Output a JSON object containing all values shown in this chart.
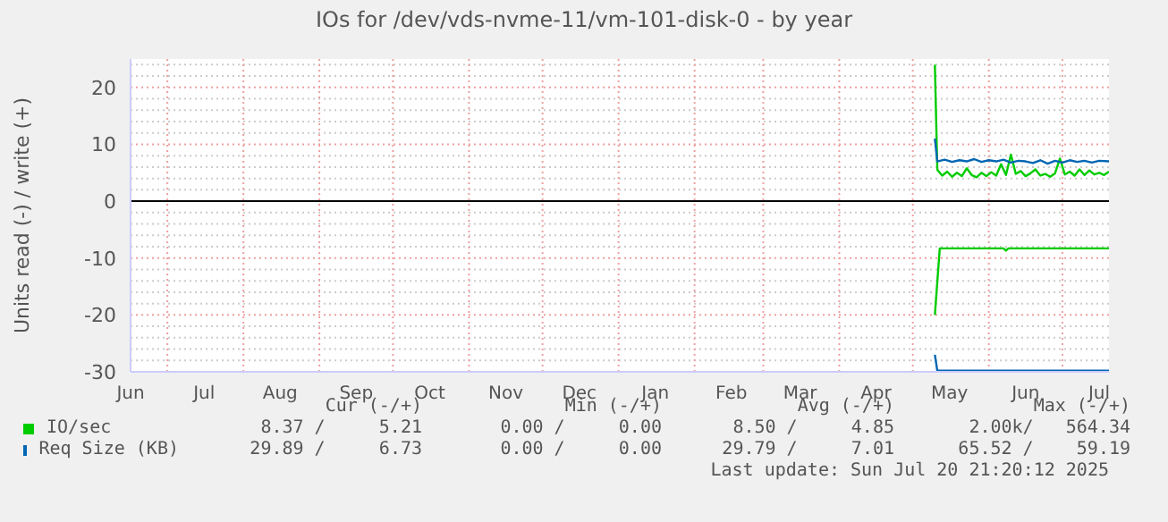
{
  "chart_data": {
    "type": "line",
    "title": "IOs for /dev/vds-nvme-11/vm-101-disk-0 - by year",
    "ylabel": "Units read (-) / write (+)",
    "xlim": [
      "2024-06-16",
      "2025-07-20"
    ],
    "xticks": [
      {
        "value": "2024-06-16",
        "label": "Jun"
      },
      {
        "value": "2024-07-01",
        "label": null
      },
      {
        "value": "2024-07-16",
        "label": "Jul"
      },
      {
        "value": "2024-08-01",
        "label": null
      },
      {
        "value": "2024-08-16",
        "label": "Aug"
      },
      {
        "value": "2024-09-01",
        "label": null
      },
      {
        "value": "2024-09-16",
        "label": "Sep"
      },
      {
        "value": "2024-10-01",
        "label": null
      },
      {
        "value": "2024-10-16",
        "label": "Oct"
      },
      {
        "value": "2024-11-01",
        "label": null
      },
      {
        "value": "2024-11-16",
        "label": "Nov"
      },
      {
        "value": "2024-12-01",
        "label": null
      },
      {
        "value": "2024-12-16",
        "label": "Dec"
      },
      {
        "value": "2025-01-01",
        "label": null
      },
      {
        "value": "2025-01-16",
        "label": "Jan"
      },
      {
        "value": "2025-02-01",
        "label": null
      },
      {
        "value": "2025-02-16",
        "label": "Feb"
      },
      {
        "value": "2025-03-01",
        "label": null
      },
      {
        "value": "2025-03-16",
        "label": "Mar"
      },
      {
        "value": "2025-04-01",
        "label": null
      },
      {
        "value": "2025-04-16",
        "label": "Apr"
      },
      {
        "value": "2025-05-01",
        "label": null
      },
      {
        "value": "2025-05-16",
        "label": "May"
      },
      {
        "value": "2025-06-01",
        "label": null
      },
      {
        "value": "2025-06-16",
        "label": "Jun"
      },
      {
        "value": "2025-07-01",
        "label": null
      },
      {
        "value": "2025-07-16",
        "label": "Jul"
      }
    ],
    "ylim": [
      -30,
      25
    ],
    "yticks": [
      -30,
      {
        "value": -28,
        "label": null
      },
      {
        "value": -26,
        "label": null
      },
      {
        "value": -24,
        "label": null
      },
      {
        "value": -22,
        "label": null
      },
      -20,
      {
        "value": -18,
        "label": null
      },
      {
        "value": -16,
        "label": null
      },
      {
        "value": -14,
        "label": null
      },
      {
        "value": -12,
        "label": null
      },
      -10,
      {
        "value": -8,
        "label": null
      },
      {
        "value": -6,
        "label": null
      },
      {
        "value": -4,
        "label": null
      },
      {
        "value": -2,
        "label": null
      },
      0,
      {
        "value": 2,
        "label": null
      },
      {
        "value": 4,
        "label": null
      },
      {
        "value": 6,
        "label": null
      },
      {
        "value": 8,
        "label": null
      },
      10,
      {
        "value": 12,
        "label": null
      },
      {
        "value": 14,
        "label": null
      },
      {
        "value": 16,
        "label": null
      },
      {
        "value": 18,
        "label": null
      },
      20,
      {
        "value": 22,
        "label": null
      },
      {
        "value": 24,
        "label": null
      }
    ],
    "grid": true,
    "marker": "none",
    "line_style": "solid",
    "legend": "bottom",
    "ref_lines": [
      {
        "axis": "y",
        "value": 0,
        "color": "#000000"
      }
    ],
    "series": [
      {
        "name": "IO/sec",
        "color": "#00cc00",
        "x": [
          "2025-05-10",
          "2025-05-11",
          "2025-05-13",
          "2025-05-15",
          "2025-05-17",
          "2025-05-19",
          "2025-05-21",
          "2025-05-23",
          "2025-05-25",
          "2025-05-27",
          "2025-05-29",
          "2025-05-31",
          "2025-06-02",
          "2025-06-04",
          "2025-06-06",
          "2025-06-08",
          "2025-06-10",
          "2025-06-12",
          "2025-06-14",
          "2025-06-16",
          "2025-06-18",
          "2025-06-20",
          "2025-06-22",
          "2025-06-24",
          "2025-06-26",
          "2025-06-28",
          "2025-06-30",
          "2025-07-02",
          "2025-07-04",
          "2025-07-06",
          "2025-07-08",
          "2025-07-10",
          "2025-07-12",
          "2025-07-14",
          "2025-07-16",
          "2025-07-18",
          "2025-07-20"
        ],
        "values": [
          24,
          5.5,
          4.5,
          5.2,
          4.3,
          5,
          4.4,
          5.8,
          4.6,
          4.2,
          5,
          4.4,
          5.1,
          4.5,
          6.5,
          4.6,
          8.2,
          4.8,
          5.3,
          4.4,
          4.9,
          5.6,
          4.5,
          4.8,
          4.3,
          4.9,
          7.5,
          4.7,
          5.2,
          4.5,
          5.6,
          4.6,
          5.4,
          4.7,
          5,
          4.6,
          5.2
        ]
      },
      {
        "name": "Req Size (KB)",
        "color": "#0066b3",
        "x": [
          "2025-05-10",
          "2025-05-11",
          "2025-05-14",
          "2025-05-17",
          "2025-05-20",
          "2025-05-23",
          "2025-05-26",
          "2025-05-29",
          "2025-06-01",
          "2025-06-04",
          "2025-06-07",
          "2025-06-10",
          "2025-06-13",
          "2025-06-16",
          "2025-06-19",
          "2025-06-22",
          "2025-06-25",
          "2025-06-28",
          "2025-07-01",
          "2025-07-04",
          "2025-07-07",
          "2025-07-10",
          "2025-07-13",
          "2025-07-16",
          "2025-07-20"
        ],
        "values": [
          11,
          7,
          7.3,
          6.9,
          7.2,
          7,
          7.4,
          6.9,
          7.2,
          7,
          7.3,
          6.8,
          7.1,
          7,
          6.7,
          7.2,
          6.6,
          7.1,
          6.8,
          7.2,
          6.9,
          7.1,
          6.8,
          7.1,
          7
        ]
      },
      {
        "color": "#00cc00",
        "x": [
          "2025-05-10",
          "2025-05-12",
          "2025-06-07",
          "2025-06-08",
          "2025-06-09",
          "2025-07-20"
        ],
        "values": [
          -20,
          -8.3,
          -8.3,
          -8.7,
          -8.3,
          -8.3
        ]
      },
      {
        "color": "#0066b3",
        "x": [
          "2025-05-10",
          "2025-05-11",
          "2025-07-20"
        ],
        "values": [
          -27,
          -29.8,
          -29.8
        ]
      }
    ],
    "annotations": [
      "Cur (-/+)",
      "Min (-/+)",
      "Avg (-/+)",
      "Max (-/+)",
      "8.37 /     5.21",
      "0.00 /     0.00",
      "8.50 /     4.85",
      "2.00k/   564.34",
      "29.89 /     6.73",
      "0.00 /     0.00",
      "29.79 /     7.01",
      "65.52 /    59.19",
      "Last update: Sun Jul 20 21:20:12 2025"
    ]
  }
}
